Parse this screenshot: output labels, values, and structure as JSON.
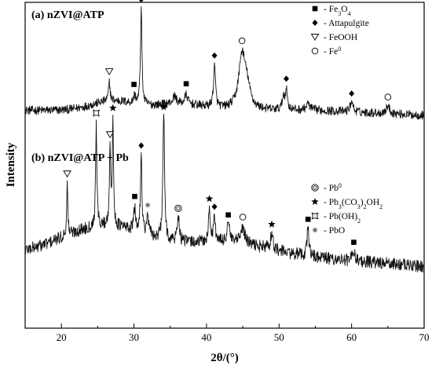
{
  "chart_data": {
    "type": "line",
    "xlabel": "2θ/(°)",
    "ylabel": "Intensity",
    "xlim": [
      15,
      70
    ],
    "xticks": [
      20,
      30,
      40,
      50,
      60,
      70
    ],
    "yticks_shown": false,
    "legend_placement": "top-right",
    "panels": [
      {
        "id": "a",
        "label": "(a) nZVI@ATP",
        "baseline": 0.3,
        "noise": 0.085,
        "peaks": [
          {
            "x": 26.6,
            "h": 0.38,
            "w": 0.13
          },
          {
            "x": 30.1,
            "h": 0.15,
            "w": 0.18
          },
          {
            "x": 31.0,
            "h": 1.9,
            "w": 0.12
          },
          {
            "x": 35.6,
            "h": 0.15,
            "w": 0.3
          },
          {
            "x": 37.2,
            "h": 0.18,
            "w": 0.25
          },
          {
            "x": 41.1,
            "h": 0.8,
            "w": 0.17
          },
          {
            "x": 44.9,
            "h": 1.05,
            "w": 0.55
          },
          {
            "x": 45.6,
            "h": 0.35,
            "w": 0.5
          },
          {
            "x": 50.6,
            "h": 0.25,
            "w": 0.18
          },
          {
            "x": 51.0,
            "h": 0.38,
            "w": 0.18
          },
          {
            "x": 54.0,
            "h": 0.12,
            "w": 0.3
          },
          {
            "x": 60.0,
            "h": 0.22,
            "w": 0.22
          },
          {
            "x": 65.0,
            "h": 0.15,
            "w": 0.3
          }
        ],
        "markers": [
          {
            "x": 26.6,
            "symbol": "triangle"
          },
          {
            "x": 30.0,
            "symbol": "square"
          },
          {
            "x": 31.0,
            "symbol": "diamond"
          },
          {
            "x": 37.2,
            "symbol": "square"
          },
          {
            "x": 41.1,
            "symbol": "diamond"
          },
          {
            "x": 44.9,
            "symbol": "circle"
          },
          {
            "x": 51.0,
            "symbol": "diamond"
          },
          {
            "x": 60.0,
            "symbol": "diamond"
          },
          {
            "x": 65.0,
            "symbol": "circle"
          }
        ]
      },
      {
        "id": "b",
        "label": "(b) nZVI@ATP + Pb",
        "baseline": 0.42,
        "noise": 0.1,
        "peaks": [
          {
            "x": 20.8,
            "h": 0.8,
            "w": 0.1
          },
          {
            "x": 24.8,
            "h": 1.65,
            "w": 0.1
          },
          {
            "x": 26.7,
            "h": 1.3,
            "w": 0.1
          },
          {
            "x": 27.1,
            "h": 1.6,
            "w": 0.1
          },
          {
            "x": 30.1,
            "h": 0.35,
            "w": 0.15
          },
          {
            "x": 31.0,
            "h": 1.25,
            "w": 0.12
          },
          {
            "x": 31.9,
            "h": 0.3,
            "w": 0.15
          },
          {
            "x": 34.1,
            "h": 2.05,
            "w": 0.13
          },
          {
            "x": 36.1,
            "h": 0.45,
            "w": 0.15
          },
          {
            "x": 40.4,
            "h": 0.5,
            "w": 0.15
          },
          {
            "x": 41.1,
            "h": 0.4,
            "w": 0.15
          },
          {
            "x": 43.0,
            "h": 0.35,
            "w": 0.18
          },
          {
            "x": 45.0,
            "h": 0.25,
            "w": 0.35
          },
          {
            "x": 49.0,
            "h": 0.28,
            "w": 0.18
          },
          {
            "x": 54.0,
            "h": 0.48,
            "w": 0.15
          },
          {
            "x": 60.3,
            "h": 0.18,
            "w": 0.2
          }
        ],
        "markers": [
          {
            "x": 20.8,
            "symbol": "triangle"
          },
          {
            "x": 24.8,
            "symbol": "hollowstar"
          },
          {
            "x": 26.7,
            "symbol": "triangle"
          },
          {
            "x": 27.1,
            "symbol": "star"
          },
          {
            "x": 30.1,
            "symbol": "square"
          },
          {
            "x": 31.0,
            "symbol": "diamond"
          },
          {
            "x": 31.9,
            "symbol": "asterisk"
          },
          {
            "x": 34.1,
            "symbol": "star"
          },
          {
            "x": 36.1,
            "symbol": "dcircle"
          },
          {
            "x": 40.4,
            "symbol": "star"
          },
          {
            "x": 41.1,
            "symbol": "diamond"
          },
          {
            "x": 43.0,
            "symbol": "square"
          },
          {
            "x": 45.0,
            "symbol": "circle"
          },
          {
            "x": 49.0,
            "symbol": "star"
          },
          {
            "x": 54.0,
            "symbol": "square"
          },
          {
            "x": 60.3,
            "symbol": "square"
          }
        ]
      }
    ],
    "legends": [
      {
        "panel": "a",
        "entries": [
          {
            "symbol": "square",
            "prefix": "- ",
            "parts": [
              {
                "t": "Fe"
              },
              {
                "t": "3",
                "sub": true
              },
              {
                "t": "O"
              },
              {
                "t": "4",
                "sub": true
              }
            ]
          },
          {
            "symbol": "diamond",
            "prefix": "- ",
            "parts": [
              {
                "t": "Attapulgite"
              }
            ]
          },
          {
            "symbol": "triangle",
            "prefix": "- ",
            "parts": [
              {
                "t": "FeOOH"
              }
            ]
          },
          {
            "symbol": "circle",
            "prefix": "- ",
            "parts": [
              {
                "t": "Fe"
              },
              {
                "t": "0",
                "sup": true
              }
            ]
          }
        ]
      },
      {
        "panel": "b",
        "entries": [
          {
            "symbol": "dcircle",
            "prefix": "- ",
            "parts": [
              {
                "t": "Pb"
              },
              {
                "t": "0",
                "sup": true
              }
            ]
          },
          {
            "symbol": "star",
            "prefix": "- ",
            "parts": [
              {
                "t": "Pb"
              },
              {
                "t": "3",
                "sub": true
              },
              {
                "t": "(CO"
              },
              {
                "t": "3",
                "sub": true
              },
              {
                "t": ")"
              },
              {
                "t": "2",
                "sub": true
              },
              {
                "t": "OH"
              },
              {
                "t": "2",
                "sub": true
              }
            ]
          },
          {
            "symbol": "hollowstar",
            "prefix": "- ",
            "parts": [
              {
                "t": "Pb(OH)"
              },
              {
                "t": "2",
                "sub": true
              }
            ]
          },
          {
            "symbol": "asterisk",
            "prefix": "- ",
            "parts": [
              {
                "t": "PbO"
              }
            ]
          }
        ]
      }
    ]
  }
}
